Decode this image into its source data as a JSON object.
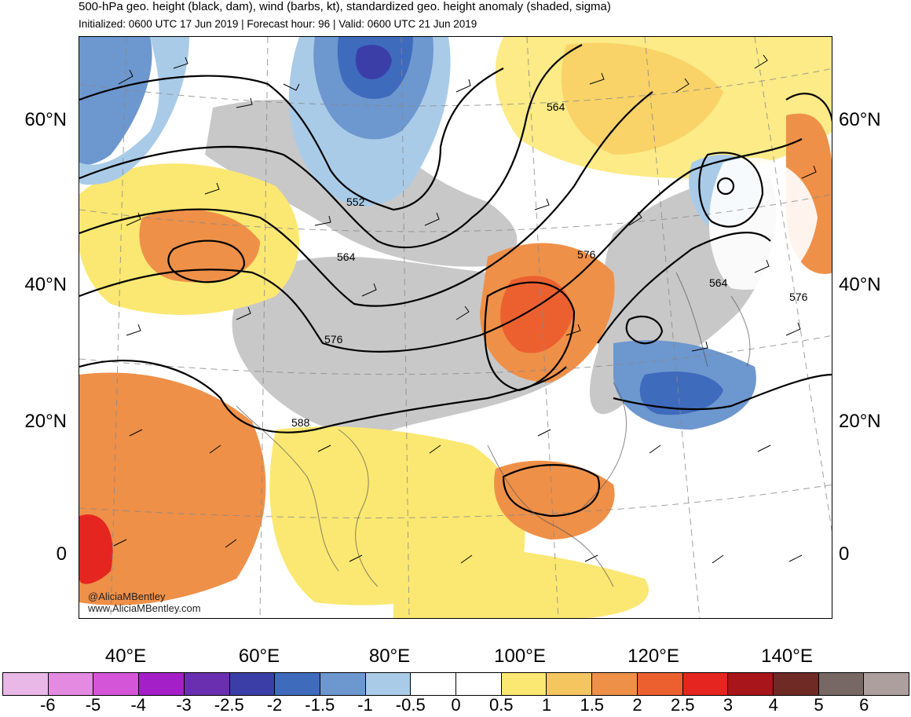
{
  "header": {
    "title": "500-hPa geo. height (black, dam), wind (barbs, kt), standardized geo. height anomaly (shaded, sigma)",
    "subtitle": "Initialized: 0600 UTC 17 Jun 2019 | Forecast hour: 96 | Valid: 0600 UTC 21 Jun 2019"
  },
  "map": {
    "lat_labels": [
      "60°N",
      "40°N",
      "20°N",
      "0"
    ],
    "lon_labels": [
      "40°E",
      "60°E",
      "80°E",
      "100°E",
      "120°E",
      "140°E"
    ],
    "contour_labels": [
      "552",
      "564",
      "564",
      "576",
      "576",
      "564",
      "576",
      "588"
    ],
    "credits": {
      "handle": "@AliciaMBentley",
      "site": "www.AliciaMBentley.com"
    }
  },
  "colorbar": {
    "labels": [
      "-6",
      "-5",
      "-4",
      "-3",
      "-2.5",
      "-2",
      "-1.5",
      "-1",
      "-0.5",
      "0",
      "0.5",
      "1",
      "1.5",
      "2",
      "2.5",
      "3",
      "4",
      "5",
      "6"
    ],
    "colors": [
      "#e9b8e6",
      "#e48ae0",
      "#d555d9",
      "#a51fc9",
      "#6a2fb0",
      "#3c3ea8",
      "#3f6bbd",
      "#6d97cf",
      "#a9cbe8",
      "#ffffff",
      "#ffffff",
      "#fbe872",
      "#f5c560",
      "#ef9048",
      "#ec6030",
      "#e52520",
      "#a8151a",
      "#6f2a25",
      "#776866",
      "#ad9f9d"
    ]
  }
}
